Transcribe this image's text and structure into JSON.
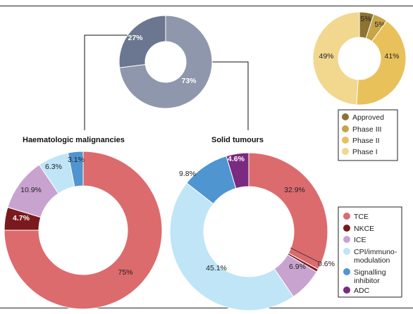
{
  "chart_data": [
    {
      "type": "pie",
      "id": "overview",
      "categories": [
        "Haematologic malignancies",
        "Solid tumours"
      ],
      "values": [
        27,
        73
      ],
      "labels": [
        "27%",
        "73%"
      ],
      "colors": [
        "#6b7690",
        "#8f97ac"
      ]
    },
    {
      "type": "pie",
      "id": "phase",
      "categories": [
        "Approved",
        "Phase III",
        "Phase II",
        "Phase I"
      ],
      "values": [
        5,
        5,
        41,
        49
      ],
      "labels": [
        "5%",
        "5%",
        "41%",
        "49%"
      ],
      "colors": [
        "#8d7331",
        "#c6a447",
        "#e9c15b",
        "#f2d78f"
      ],
      "legend_placement": "bottom"
    },
    {
      "type": "pie",
      "id": "haem",
      "title": "Haematologic malignancies",
      "categories": [
        "TCE",
        "NKCE",
        "ICE",
        "CPI/immuno-modulation",
        "Signalling inhibitor",
        "ADC"
      ],
      "values": [
        75,
        4.7,
        10.9,
        6.3,
        3.1,
        0
      ],
      "labels": [
        "75%",
        "4.7%",
        "10.9%",
        "6.3%",
        "3.1%",
        ""
      ],
      "colors": [
        "#dc6b6e",
        "#7a1a1e",
        "#c9a3cf",
        "#bfe5f7",
        "#4f95cf",
        "#7a2a80"
      ]
    },
    {
      "type": "pie",
      "id": "solid",
      "title": "Solid tumours",
      "categories": [
        "TCE",
        "NKCE",
        "ICE",
        "CPI/immuno-modulation",
        "Signalling inhibitor",
        "ADC"
      ],
      "values": [
        32.9,
        0.6,
        6.9,
        45.1,
        9.8,
        4.6
      ],
      "labels": [
        "32.9%",
        "0.6%",
        "6.9%",
        "45.1%",
        "9.8%",
        "4.6%"
      ],
      "colors": [
        "#dc6b6e",
        "#7a1a1e",
        "#c9a3cf",
        "#bfe5f7",
        "#4f95cf",
        "#7a2a80"
      ],
      "legend_placement": "right"
    }
  ],
  "legends": {
    "phase": [
      "Approved",
      "Phase III",
      "Phase II",
      "Phase I"
    ],
    "modality": [
      "TCE",
      "NKCE",
      "ICE",
      "CPI/immuno-",
      "modulation",
      "Signalling",
      "inhibitor",
      "ADC"
    ]
  }
}
